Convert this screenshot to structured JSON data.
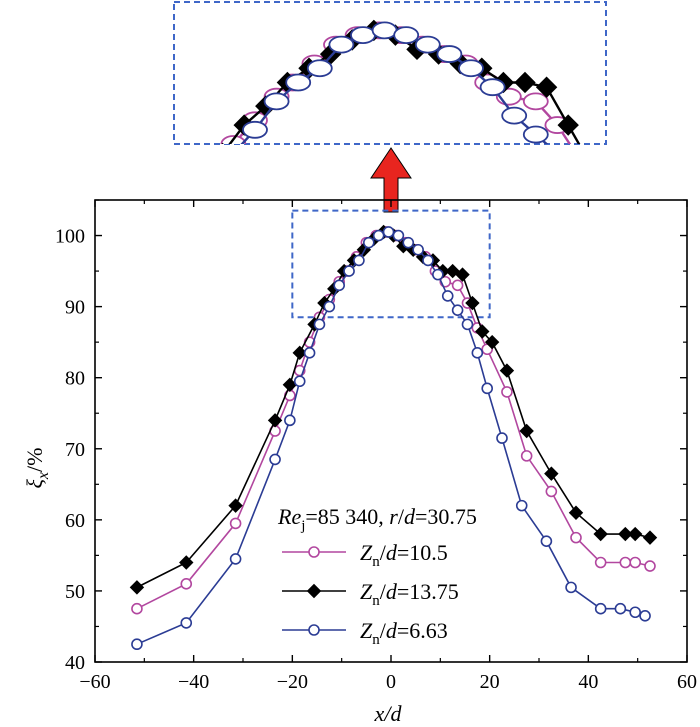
{
  "chart_data": {
    "type": "line",
    "xlabel_parts": [
      "x",
      "/",
      "d"
    ],
    "ylabel_parts": [
      "ξ",
      "x",
      "/%"
    ],
    "xlim": [
      -60,
      60
    ],
    "ylim": [
      40,
      105
    ],
    "x_ticks": [
      "−60",
      "−40",
      "−20",
      "0",
      "20",
      "40",
      "60"
    ],
    "x_tick_values": [
      -60,
      -40,
      -20,
      0,
      20,
      40,
      60
    ],
    "y_ticks": [
      "40",
      "50",
      "60",
      "70",
      "80",
      "90",
      "100"
    ],
    "y_tick_values": [
      40,
      50,
      60,
      70,
      80,
      90,
      100
    ],
    "grid": false,
    "annotation": {
      "re_label": "Re",
      "re_sub": "j",
      "re_value": "=85 340, ",
      "r_label": "r",
      "slash": "/",
      "d_label": "d",
      "r_value": "=30.75"
    },
    "zoom_box": {
      "x_range": [
        -20,
        20
      ],
      "y_range": [
        88.5,
        103.5
      ],
      "arrow_color": "#e8251f",
      "box_color": "#3f67c8"
    },
    "series": [
      {
        "name_parts": [
          "Z",
          "n",
          "/",
          "d",
          "=10.5"
        ],
        "color": "#b2479f",
        "marker": "circle-open",
        "x": [
          -51.5,
          -41.5,
          -31.5,
          -23.5,
          -20.5,
          -18.5,
          -16.5,
          -14.5,
          -12.5,
          -10.5,
          -9,
          -7,
          -5,
          -3,
          -1,
          1,
          3,
          5,
          7,
          9,
          11,
          13.5,
          15.5,
          17.5,
          19.5,
          23.5,
          27.5,
          32.5,
          37.5,
          42.5,
          47.5,
          49.5,
          52.5
        ],
        "y": [
          47.5,
          51.0,
          59.5,
          72.5,
          77.5,
          81.0,
          85.0,
          88.5,
          91.0,
          93.5,
          95.0,
          97.0,
          99.0,
          100.0,
          100.5,
          100.0,
          99.0,
          98.0,
          97.0,
          95.0,
          93.5,
          93.0,
          90.5,
          87.0,
          84.0,
          78.0,
          69.0,
          64.0,
          57.5,
          54.0,
          54.0,
          54.0,
          53.5
        ]
      },
      {
        "name_parts": [
          "Z",
          "n",
          "/",
          "d",
          "=13.75"
        ],
        "color": "#000000",
        "marker": "diamond-filled",
        "x": [
          -51.5,
          -41.5,
          -31.5,
          -23.5,
          -20.5,
          -18.5,
          -15.5,
          -13.5,
          -11.5,
          -9.5,
          -7.5,
          -5.5,
          -3.5,
          -1.5,
          0.5,
          2.5,
          4.5,
          6.5,
          8.5,
          10.5,
          12.5,
          14.5,
          16.5,
          18.5,
          20.5,
          23.5,
          27.5,
          32.5,
          37.5,
          42.5,
          47.5,
          49.5,
          52.5
        ],
        "y": [
          50.5,
          54.0,
          62.0,
          74.0,
          79.0,
          83.5,
          87.5,
          90.5,
          92.5,
          95.0,
          96.5,
          98.0,
          99.5,
          100.5,
          100.0,
          98.5,
          98.0,
          97.0,
          96.5,
          95.0,
          95.0,
          94.5,
          90.5,
          86.5,
          85.0,
          81.0,
          72.5,
          66.5,
          61.0,
          58.0,
          58.0,
          58.0,
          57.5
        ]
      },
      {
        "name_parts": [
          "Z",
          "n",
          "/",
          "d",
          "=6.63"
        ],
        "color": "#2b3c94",
        "marker": "circle-open",
        "x": [
          -51.5,
          -41.5,
          -31.5,
          -23.5,
          -20.5,
          -18.5,
          -16.5,
          -14.5,
          -12.5,
          -10.5,
          -8.5,
          -6.5,
          -4.5,
          -2.5,
          -0.5,
          1.5,
          3.5,
          5.5,
          7.5,
          9.5,
          11.5,
          13.5,
          15.5,
          17.5,
          19.5,
          22.5,
          26.5,
          31.5,
          36.5,
          42.5,
          46.5,
          49.5,
          51.5
        ],
        "y": [
          42.5,
          45.5,
          54.5,
          68.5,
          74.0,
          79.5,
          83.5,
          87.5,
          90.0,
          93.0,
          95.0,
          96.5,
          99.0,
          100.0,
          100.5,
          100.0,
          99.0,
          98.0,
          96.5,
          94.5,
          91.5,
          89.5,
          87.5,
          83.5,
          78.5,
          71.5,
          62.0,
          57.0,
          50.5,
          47.5,
          47.5,
          47.0,
          46.5
        ]
      }
    ]
  }
}
